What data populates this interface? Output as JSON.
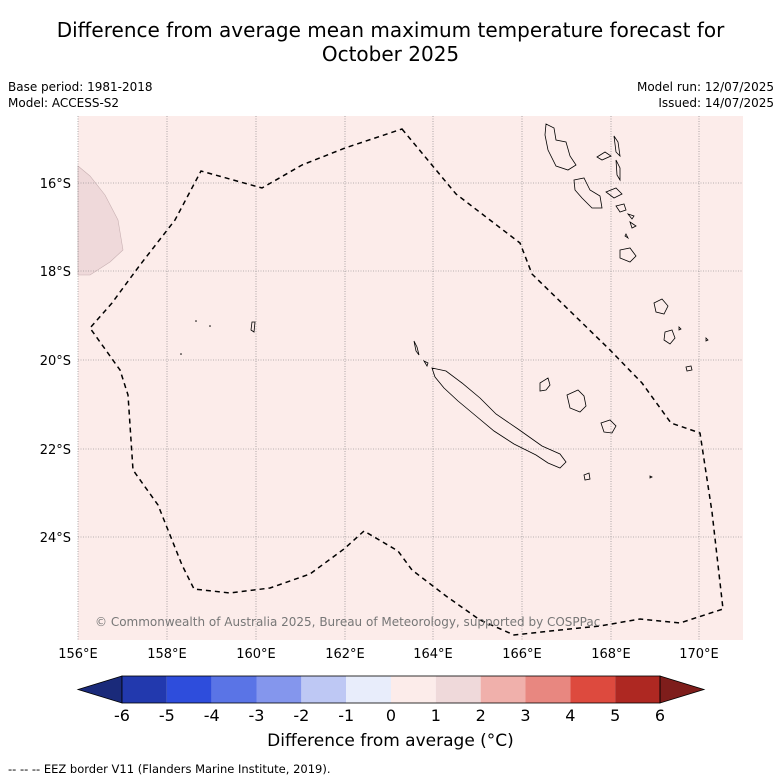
{
  "title": {
    "line1": "Difference from average mean maximum temperature forecast for",
    "line2": "October 2025"
  },
  "meta": {
    "base_period": "Base period: 1981-2018",
    "model": "Model: ACCESS-S2",
    "model_run": "Model run: 12/07/2025",
    "issued": "Issued: 14/07/2025"
  },
  "map": {
    "lon_ticks": [
      "156°E",
      "158°E",
      "160°E",
      "162°E",
      "164°E",
      "166°E",
      "168°E",
      "170°E"
    ],
    "lat_ticks": [
      "16°S",
      "18°S",
      "20°S",
      "22°S",
      "24°S"
    ],
    "copyright": "© Commonwealth of Australia 2025, Bureau of Meteorology, supported by COSPPac",
    "fill_color": "#fcecea",
    "land_anomaly_color": "#efd9da"
  },
  "colorbar": {
    "ticks": [
      "-6",
      "-5",
      "-4",
      "-3",
      "-2",
      "-1",
      "0",
      "1",
      "2",
      "3",
      "4",
      "5",
      "6"
    ],
    "colors": [
      "#1a2a7a",
      "#2239ae",
      "#2e4ddc",
      "#5a74e6",
      "#8496ed",
      "#bec8f4",
      "#e8edfb",
      "#fcecea",
      "#efd9da",
      "#f0b0ab",
      "#e88780",
      "#dd4a3e",
      "#ae2822",
      "#7e1d1b"
    ],
    "label": "Difference from average (°C)"
  },
  "footnote": "-- -- -- EEZ border V11 (Flanders Marine Institute, 2019)."
}
